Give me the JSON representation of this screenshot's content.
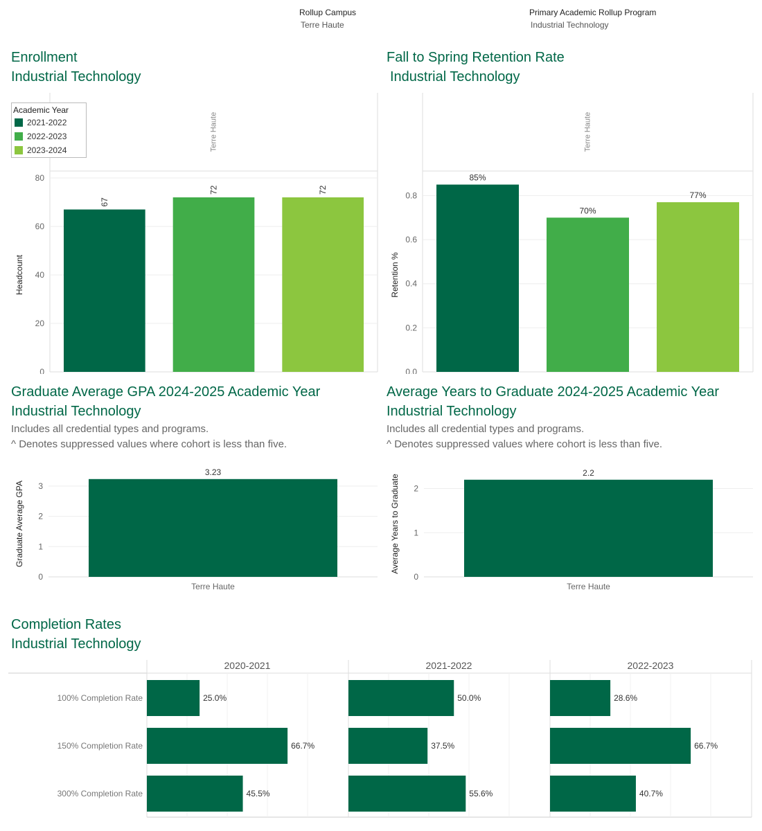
{
  "filters": {
    "campus_label": "Rollup Campus",
    "campus_value": "Terre Haute",
    "program_label": "Primary Academic Rollup Program",
    "program_value": "Industrial Technology"
  },
  "colors": {
    "brand": "#006747",
    "series": [
      "#006747",
      "#41ad49",
      "#8cc63f"
    ]
  },
  "enrollment": {
    "title": "Enrollment",
    "subtitle": "Industrial Technology",
    "legend_title": "Academic Year",
    "legend_items": [
      "2021-2022",
      "2022-2023",
      "2023-2024"
    ]
  },
  "retention": {
    "title": "Fall to Spring Retention Rate",
    "subtitle": "Industrial Technology"
  },
  "gpa": {
    "title": "Graduate Average GPA 2024-2025 Academic Year",
    "subtitle": "Industrial Technology",
    "note1": "Includes all credential types and programs.",
    "note2": "^ Denotes suppressed values where cohort is less than five."
  },
  "years": {
    "title": "Average Years to Graduate 2024-2025 Academic Year",
    "subtitle": "Industrial Technology",
    "note1": "Includes all credential types and programs.",
    "note2": "^ Denotes suppressed values where cohort is less than five."
  },
  "completion": {
    "title": "Completion Rates",
    "subtitle": "Industrial Technology"
  },
  "chart_data": [
    {
      "type": "bar",
      "id": "enrollment",
      "column_header": "Terre Haute",
      "categories": [
        "2021-2022",
        "2022-2023",
        "2023-2024"
      ],
      "values": [
        67,
        72,
        72
      ],
      "labels": [
        "67",
        "72",
        "72"
      ],
      "ylabel": "Headcount",
      "ylim": [
        0,
        80
      ],
      "yticks": [
        0,
        20,
        40,
        60,
        80
      ],
      "legend": "top-left"
    },
    {
      "type": "bar",
      "id": "retention",
      "column_header": "Terre Haute",
      "categories": [
        "2021-2022",
        "2022-2023",
        "2023-2024"
      ],
      "values": [
        0.85,
        0.7,
        0.77
      ],
      "labels": [
        "85%",
        "70%",
        "77%"
      ],
      "ylabel": "Retention %",
      "ylim": [
        0,
        0.88
      ],
      "yticks": [
        "0.0",
        "0.2",
        "0.4",
        "0.6",
        "0.8"
      ]
    },
    {
      "type": "bar",
      "id": "gpa",
      "categories": [
        "Terre Haute"
      ],
      "values": [
        3.23
      ],
      "labels": [
        "3.23"
      ],
      "ylabel": "Graduate Average GPA",
      "ylim": [
        0,
        3.5
      ],
      "yticks": [
        0,
        1,
        2,
        3
      ]
    },
    {
      "type": "bar",
      "id": "years",
      "categories": [
        "Terre Haute"
      ],
      "values": [
        2.2
      ],
      "labels": [
        "2.2"
      ],
      "ylabel": "Average Years to Graduate",
      "ylim": [
        0,
        2.4
      ],
      "yticks": [
        0,
        1,
        2
      ]
    },
    {
      "type": "bar",
      "id": "completion",
      "orientation": "horizontal",
      "columns": [
        "2020-2021",
        "2021-2022",
        "2022-2023"
      ],
      "rows": [
        "100% Completion Rate",
        "150% Completion Rate",
        "300% Completion Rate"
      ],
      "values": [
        [
          25.0,
          66.7,
          45.5
        ],
        [
          50.0,
          37.5,
          55.6
        ],
        [
          28.6,
          66.7,
          40.7
        ]
      ],
      "labels": [
        [
          "25.0%",
          "66.7%",
          "45.5%"
        ],
        [
          "50.0%",
          "37.5%",
          "55.6%"
        ],
        [
          "28.6%",
          "66.7%",
          "40.7%"
        ]
      ],
      "xlim": [
        0,
        100
      ]
    }
  ]
}
